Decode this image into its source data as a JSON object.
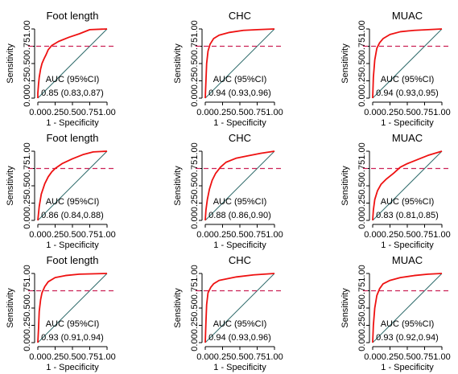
{
  "chart_data": [
    {
      "type": "line",
      "title": "Foot length",
      "xlabel": "1 - Specificity",
      "ylabel": "Sensitivity",
      "xticks": [
        "0.00",
        "0.25",
        "0.50",
        "0.75",
        "1.00"
      ],
      "yticks": [
        "0.00",
        "0.25",
        "0.50",
        "0.75",
        "1.00"
      ],
      "xlim": [
        0,
        1
      ],
      "ylim": [
        0,
        1
      ],
      "reference_line_y": 0.75,
      "auc_header": "AUC (95%CI)",
      "auc_value": "0.85 (0.83,0.87)",
      "roc": [
        [
          0,
          0
        ],
        [
          0,
          0.07
        ],
        [
          0.01,
          0.2
        ],
        [
          0.02,
          0.3
        ],
        [
          0.04,
          0.42
        ],
        [
          0.06,
          0.5
        ],
        [
          0.09,
          0.57
        ],
        [
          0.12,
          0.63
        ],
        [
          0.15,
          0.7
        ],
        [
          0.2,
          0.76
        ],
        [
          0.3,
          0.82
        ],
        [
          0.45,
          0.88
        ],
        [
          0.6,
          0.93
        ],
        [
          0.75,
          0.99
        ],
        [
          1,
          1
        ]
      ]
    },
    {
      "type": "line",
      "title": "CHC",
      "xlabel": "1 - Specificity",
      "ylabel": "Sensitivity",
      "xticks": [
        "0.00",
        "0.25",
        "0.50",
        "0.75",
        "1.00"
      ],
      "yticks": [
        "0.00",
        "0.25",
        "0.50",
        "0.75",
        "1.00"
      ],
      "xlim": [
        0,
        1
      ],
      "ylim": [
        0,
        1
      ],
      "reference_line_y": 0.75,
      "auc_header": "AUC (95%CI)",
      "auc_value": "0.94 (0.93,0.96)",
      "roc": [
        [
          0,
          0
        ],
        [
          0.01,
          0.25
        ],
        [
          0.02,
          0.5
        ],
        [
          0.04,
          0.68
        ],
        [
          0.07,
          0.78
        ],
        [
          0.12,
          0.86
        ],
        [
          0.2,
          0.91
        ],
        [
          0.35,
          0.95
        ],
        [
          0.55,
          0.98
        ],
        [
          0.75,
          0.99
        ],
        [
          1,
          1
        ]
      ]
    },
    {
      "type": "line",
      "title": "MUAC",
      "xlabel": "1 - Specificity",
      "ylabel": "Sensitivity",
      "xticks": [
        "0.00",
        "0.25",
        "0.50",
        "0.75",
        "1.00"
      ],
      "yticks": [
        "0.00",
        "0.25",
        "0.50",
        "0.75",
        "1.00"
      ],
      "xlim": [
        0,
        1
      ],
      "ylim": [
        0,
        1
      ],
      "reference_line_y": 0.75,
      "auc_header": "AUC (95%CI)",
      "auc_value": "0.94 (0.93,0.95)",
      "roc": [
        [
          0,
          0
        ],
        [
          0.01,
          0.3
        ],
        [
          0.03,
          0.55
        ],
        [
          0.06,
          0.72
        ],
        [
          0.1,
          0.8
        ],
        [
          0.15,
          0.86
        ],
        [
          0.25,
          0.92
        ],
        [
          0.4,
          0.96
        ],
        [
          0.6,
          0.98
        ],
        [
          0.8,
          0.99
        ],
        [
          1,
          1
        ]
      ]
    },
    {
      "type": "line",
      "title": "Foot length",
      "xlabel": "1 - Specificity",
      "ylabel": "Sensitivity",
      "xticks": [
        "0.00",
        "0.25",
        "0.50",
        "0.75",
        "1.00"
      ],
      "yticks": [
        "0.00",
        "0.25",
        "0.50",
        "0.75",
        "1.00"
      ],
      "xlim": [
        0,
        1
      ],
      "ylim": [
        0,
        1
      ],
      "reference_line_y": 0.75,
      "auc_header": "AUC (95%CI)",
      "auc_value": "0.86 (0.84,0.88)",
      "roc": [
        [
          0,
          0
        ],
        [
          0.02,
          0.2
        ],
        [
          0.05,
          0.38
        ],
        [
          0.1,
          0.53
        ],
        [
          0.15,
          0.63
        ],
        [
          0.2,
          0.7
        ],
        [
          0.25,
          0.75
        ],
        [
          0.35,
          0.82
        ],
        [
          0.5,
          0.89
        ],
        [
          0.65,
          0.95
        ],
        [
          0.8,
          0.99
        ],
        [
          1,
          1
        ]
      ]
    },
    {
      "type": "line",
      "title": "CHC",
      "xlabel": "1 - Specificity",
      "ylabel": "Sensitivity",
      "xticks": [
        "0.00",
        "0.25",
        "0.50",
        "0.75",
        "1.00"
      ],
      "yticks": [
        "0.00",
        "0.25",
        "0.50",
        "0.75",
        "1.00"
      ],
      "xlim": [
        0,
        1
      ],
      "ylim": [
        0,
        1
      ],
      "reference_line_y": 0.75,
      "auc_header": "AUC (95%CI)",
      "auc_value": "0.88 (0.86,0.90)",
      "roc": [
        [
          0,
          0
        ],
        [
          0.01,
          0.15
        ],
        [
          0.03,
          0.3
        ],
        [
          0.06,
          0.45
        ],
        [
          0.1,
          0.58
        ],
        [
          0.15,
          0.68
        ],
        [
          0.22,
          0.77
        ],
        [
          0.3,
          0.84
        ],
        [
          0.45,
          0.9
        ],
        [
          0.6,
          0.93
        ],
        [
          0.8,
          0.97
        ],
        [
          1,
          1
        ]
      ]
    },
    {
      "type": "line",
      "title": "MUAC",
      "xlabel": "1 - Specificity",
      "ylabel": "Sensitivity",
      "xticks": [
        "0.00",
        "0.25",
        "0.50",
        "0.75",
        "1.00"
      ],
      "yticks": [
        "0.00",
        "0.25",
        "0.50",
        "0.75",
        "1.00"
      ],
      "xlim": [
        0,
        1
      ],
      "ylim": [
        0,
        1
      ],
      "reference_line_y": 0.75,
      "auc_header": "AUC (95%CI)",
      "auc_value": "0.83 (0.81,0.85)",
      "roc": [
        [
          0,
          0
        ],
        [
          0.01,
          0.15
        ],
        [
          0.03,
          0.3
        ],
        [
          0.07,
          0.43
        ],
        [
          0.12,
          0.52
        ],
        [
          0.2,
          0.6
        ],
        [
          0.3,
          0.68
        ],
        [
          0.4,
          0.77
        ],
        [
          0.5,
          0.82
        ],
        [
          0.65,
          0.88
        ],
        [
          0.8,
          0.94
        ],
        [
          1,
          1
        ]
      ]
    },
    {
      "type": "line",
      "title": "Foot length",
      "xlabel": "1 - Specificity",
      "ylabel": "Sensitivity",
      "xticks": [
        "0.00",
        "0.25",
        "0.50",
        "0.75",
        "1.00"
      ],
      "yticks": [
        "0.00",
        "0.25",
        "0.50",
        "0.75",
        "1.00"
      ],
      "xlim": [
        0,
        1
      ],
      "ylim": [
        0,
        1
      ],
      "reference_line_y": 0.75,
      "auc_header": "AUC (95%CI)",
      "auc_value": "0.93 (0.91,0.94)",
      "roc": [
        [
          0,
          0
        ],
        [
          0.01,
          0.2
        ],
        [
          0.02,
          0.45
        ],
        [
          0.04,
          0.62
        ],
        [
          0.06,
          0.72
        ],
        [
          0.1,
          0.81
        ],
        [
          0.15,
          0.88
        ],
        [
          0.25,
          0.94
        ],
        [
          0.4,
          0.97
        ],
        [
          0.6,
          0.99
        ],
        [
          1,
          1
        ]
      ]
    },
    {
      "type": "line",
      "title": "CHC",
      "xlabel": "1 - Specificity",
      "ylabel": "Sensitivity",
      "xticks": [
        "0.00",
        "0.25",
        "0.50",
        "0.75",
        "1.00"
      ],
      "yticks": [
        "0.00",
        "0.25",
        "0.50",
        "0.75",
        "1.00"
      ],
      "xlim": [
        0,
        1
      ],
      "ylim": [
        0,
        1
      ],
      "reference_line_y": 0.75,
      "auc_header": "AUC (95%CI)",
      "auc_value": "0.94 (0.93,0.96)",
      "roc": [
        [
          0,
          0
        ],
        [
          0.01,
          0.3
        ],
        [
          0.02,
          0.55
        ],
        [
          0.04,
          0.72
        ],
        [
          0.08,
          0.8
        ],
        [
          0.12,
          0.85
        ],
        [
          0.2,
          0.9
        ],
        [
          0.3,
          0.92
        ],
        [
          0.45,
          0.95
        ],
        [
          0.7,
          0.98
        ],
        [
          1,
          1
        ]
      ]
    },
    {
      "type": "line",
      "title": "MUAC",
      "xlabel": "1 - Specificity",
      "ylabel": "Sensitivity",
      "xticks": [
        "0.00",
        "0.25",
        "0.50",
        "0.75",
        "1.00"
      ],
      "yticks": [
        "0.00",
        "0.25",
        "0.50",
        "0.75",
        "1.00"
      ],
      "xlim": [
        0,
        1
      ],
      "ylim": [
        0,
        1
      ],
      "reference_line_y": 0.75,
      "auc_header": "AUC (95%CI)",
      "auc_value": "0.93 (0.92,0.94)",
      "roc": [
        [
          0,
          0
        ],
        [
          0.01,
          0.25
        ],
        [
          0.03,
          0.5
        ],
        [
          0.06,
          0.68
        ],
        [
          0.1,
          0.78
        ],
        [
          0.15,
          0.85
        ],
        [
          0.25,
          0.9
        ],
        [
          0.4,
          0.94
        ],
        [
          0.6,
          0.97
        ],
        [
          0.8,
          0.99
        ],
        [
          1,
          1
        ]
      ]
    }
  ],
  "colors": {
    "roc": "#ee1111",
    "cutoff": "#cc2255",
    "diagonal": "#2f6b6b",
    "axis": "#000000"
  }
}
